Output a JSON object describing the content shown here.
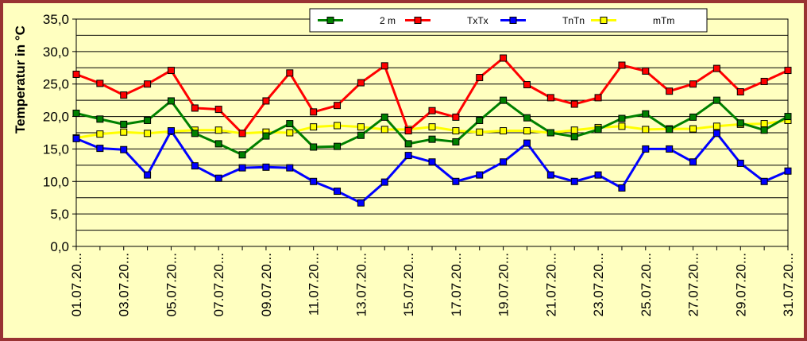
{
  "chart_data": {
    "type": "line",
    "title": "",
    "xlabel": "",
    "ylabel": "Temperatur in °C",
    "ylim": [
      0,
      35
    ],
    "yticks": [
      "0,0",
      "5,0",
      "10,0",
      "15,0",
      "20,0",
      "25,0",
      "30,0",
      "35,0"
    ],
    "grid": true,
    "legend_position": "top-right",
    "x_tick_labels": [
      "01.07.20...",
      "03.07.20...",
      "05.07.20...",
      "07.07.20...",
      "09.07.20...",
      "11.07.20...",
      "13.07.20...",
      "15.07.20...",
      "17.07.20...",
      "19.07.20...",
      "21.07.20...",
      "23.07.20...",
      "25.07.20...",
      "27.07.20...",
      "29.07.20...",
      "31.07.20..."
    ],
    "x_tick_every": 2,
    "background_color": "#ffffc0",
    "frame_color": "#993333",
    "series": [
      {
        "name": "2 m",
        "color": "#008000",
        "marker_fill": "#008000",
        "line_width": 3,
        "values": [
          20.5,
          19.6,
          18.8,
          19.4,
          22.4,
          17.4,
          15.8,
          14.1,
          17.0,
          18.9,
          15.3,
          15.4,
          17.1,
          19.9,
          15.8,
          16.5,
          16.1,
          19.4,
          22.5,
          19.8,
          17.5,
          16.9,
          18.0,
          19.7,
          20.4,
          18.0,
          19.9,
          22.5,
          19.0,
          17.9,
          20.0
        ]
      },
      {
        "name": "TxTx",
        "color": "#ff0000",
        "marker_fill": "#ff0000",
        "line_width": 3,
        "values": [
          26.5,
          25.1,
          23.3,
          25.0,
          27.1,
          21.3,
          21.1,
          17.4,
          22.4,
          26.7,
          20.7,
          21.7,
          25.2,
          27.8,
          17.8,
          20.9,
          19.9,
          26.0,
          29.0,
          24.9,
          22.9,
          21.9,
          22.9,
          27.9,
          27.0,
          23.9,
          25.0,
          27.4,
          23.8,
          25.4,
          27.1
        ]
      },
      {
        "name": "TnTn",
        "color": "#0000ff",
        "marker_fill": "#0000ff",
        "line_width": 3,
        "values": [
          16.6,
          15.1,
          14.9,
          11.0,
          17.8,
          12.4,
          10.5,
          12.1,
          12.2,
          12.1,
          10.0,
          8.5,
          6.7,
          9.9,
          14.0,
          13.0,
          10.0,
          11.0,
          13.0,
          15.9,
          11.0,
          10.0,
          11.0,
          9.0,
          15.0,
          15.0,
          13.0,
          17.4,
          12.8,
          10.0,
          11.6
        ]
      },
      {
        "name": "mTm",
        "color": "#ffff00",
        "marker_fill": "#ffff00",
        "line_width": 3,
        "values": [
          16.7,
          17.3,
          17.6,
          17.4,
          17.7,
          17.9,
          17.9,
          17.4,
          17.6,
          17.5,
          18.4,
          18.6,
          18.4,
          18.0,
          18.0,
          18.4,
          17.8,
          17.6,
          17.8,
          17.8,
          17.5,
          17.9,
          18.3,
          18.5,
          18.0,
          18.1,
          18.1,
          18.5,
          18.8,
          18.9,
          19.4
        ]
      }
    ]
  }
}
